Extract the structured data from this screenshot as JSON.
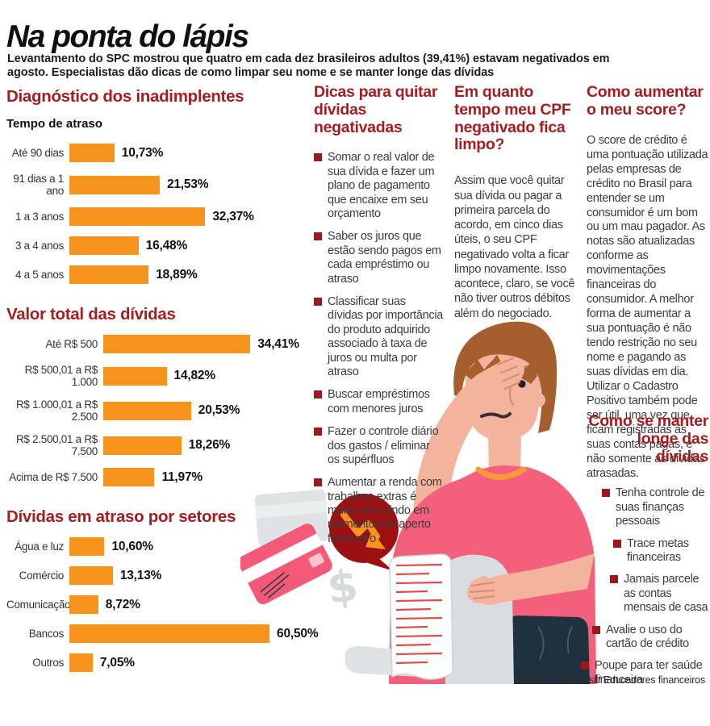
{
  "header": {
    "title": "Na ponta do lápis",
    "subtitle": "Levantamento do SPC mostrou que quatro em cada dez brasileiros adultos (39,41%) estavam negativados em agosto. Especialistas dão dicas de como limpar seu nome e se manter longe das dívidas"
  },
  "chart_data": [
    {
      "type": "bar",
      "title": "Diagnóstico dos inadimplentes",
      "subtitle": "Tempo de atraso",
      "orientation": "horizontal",
      "categories": [
        "Até 90 dias",
        "91 dias a 1 ano",
        "1 a 3 anos",
        "3 a 4 anos",
        "4 a 5 anos"
      ],
      "values": [
        10.73,
        21.53,
        32.37,
        16.48,
        18.89
      ],
      "value_labels": [
        "10,73%",
        "21,53%",
        "32,37%",
        "16,48%",
        "18,89%"
      ],
      "bar_color": "#f7941d",
      "xlim": [
        0,
        35
      ],
      "grid": false,
      "legend": false
    },
    {
      "type": "bar",
      "title": "Valor total das dívidas",
      "orientation": "horizontal",
      "categories": [
        "Até R$ 500",
        "R$ 500,01 a R$ 1.000",
        "R$ 1.000,01 a R$ 2.500",
        "R$ 2.500,01 a R$ 7.500",
        "Acima de R$ 7.500"
      ],
      "values": [
        34.41,
        14.82,
        20.53,
        18.26,
        11.97
      ],
      "value_labels": [
        "34,41%",
        "14,82%",
        "20,53%",
        "18,26%",
        "11,97%"
      ],
      "bar_color": "#f7941d",
      "xlim": [
        0,
        35
      ],
      "grid": false,
      "legend": false
    },
    {
      "type": "bar",
      "title": "Dívidas em atraso por setores",
      "orientation": "horizontal",
      "categories": [
        "Água e luz",
        "Comércio",
        "Comunicação",
        "Bancos",
        "Outros"
      ],
      "values": [
        10.6,
        13.13,
        8.72,
        60.5,
        7.05
      ],
      "value_labels": [
        "10,60%",
        "13,13%",
        "8,72%",
        "60,50%",
        "7,05%"
      ],
      "bar_color": "#f7941d",
      "xlim": [
        0,
        62
      ],
      "grid": false,
      "legend": false
    }
  ],
  "columns": {
    "dicas": {
      "title": "Dicas para quitar dívidas negativadas",
      "items": [
        "Somar o real valor de sua dívida e fazer um plano de pagamento que encaixe em seu orçamento",
        "Saber os juros que estão sendo pagos em cada empréstimo ou atraso",
        "Classificar suas dívidas por importância do produto adquirido associado à taxa de juros ou multa por atraso",
        "Buscar empréstimos com menores juros",
        "Fazer o controle diário dos gastos / eliminar os supérfluos",
        "Aumentar a renda com trabalhos extras é muito bem-vindo em momentos de aperto financeiro"
      ]
    },
    "cpf": {
      "title": "Em quanto tempo meu CPF negativado fica limpo?",
      "body": "Assim que você quitar sua dívida ou pagar a primeira parcela do acordo, em cinco dias úteis, o seu CPF negativado volta a ficar limpo novamente. Isso acontece, claro, se você não tiver outros débitos além do negociado."
    },
    "score": {
      "title": "Como aumentar o meu score?",
      "body": "O score de crédito é uma pontuação utilizada pelas empresas de crédito no Brasil para entender se um consumidor é um bom ou um mau pagador. As notas são atualizadas conforme as movimentações financeiras do consumidor. A melhor forma de aumentar a sua pontuação é não tendo restrição no seu nome e pagando as suas dívidas em dia. Utilizar o Cadastro Positivo também pode ser útil, uma vez que ficam registradas as suas contas pagas, e não somente as dívidas atrasadas."
    },
    "manter": {
      "title": "Como se manter longe das dívidas",
      "items": [
        "Tenha controle de suas finanças pessoais",
        "Trace metas financeiras",
        "Jamais parcele as contas mensais de casa",
        "Avalie o uso do cartão de crédito",
        "Poupe para ter saúde financeira"
      ]
    }
  },
  "illustration": {
    "dollar_sign": "$",
    "elements": [
      "worried-man",
      "receipt",
      "credit-cards",
      "down-trend-arrow-bubble",
      "dollar-signs"
    ]
  },
  "footer": {
    "source": "Fontes: SPC Brasil/ Educadores financeiros"
  },
  "colors": {
    "accent_orange": "#f7941d",
    "heading_red": "#a31d21",
    "bullet_red": "#9c181d",
    "illustration_pink": "#f2607b",
    "bubble_dark_red": "#9c1013",
    "jeans_navy": "#20303f"
  }
}
